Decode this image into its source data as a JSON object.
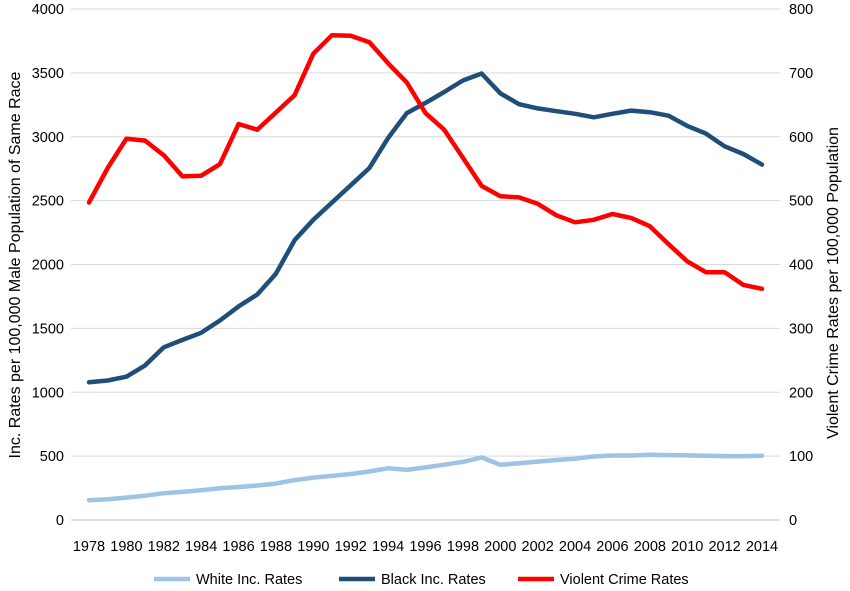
{
  "chart_data": {
    "type": "line",
    "title": "",
    "x": [
      1978,
      1979,
      1980,
      1981,
      1982,
      1983,
      1984,
      1985,
      1986,
      1987,
      1988,
      1989,
      1990,
      1991,
      1992,
      1993,
      1994,
      1995,
      1996,
      1997,
      1998,
      1999,
      2000,
      2001,
      2002,
      2003,
      2004,
      2005,
      2006,
      2007,
      2008,
      2009,
      2010,
      2011,
      2012,
      2013,
      2014
    ],
    "x_tick_labels": [
      "1978",
      "1980",
      "1982",
      "1984",
      "1986",
      "1988",
      "1990",
      "1992",
      "1994",
      "1996",
      "1998",
      "2000",
      "2002",
      "2004",
      "2006",
      "2008",
      "2010",
      "2012",
      "2014"
    ],
    "ylabel_left": "Inc. Rates per 100,000 Male Population of Same Race",
    "ylabel_right": "Violent Crime Rates per 100,000  Population",
    "ylim_left": [
      0,
      4000
    ],
    "ylim_right": [
      0,
      800
    ],
    "left_ticks": [
      "0",
      "500",
      "1000",
      "1500",
      "2000",
      "2500",
      "3000",
      "3500",
      "4000"
    ],
    "right_ticks": [
      "0",
      "100",
      "200",
      "300",
      "400",
      "500",
      "600",
      "700",
      "800"
    ],
    "grid": true,
    "legend_position": "bottom",
    "series": [
      {
        "name": "White Inc. Rates",
        "axis": "left",
        "color": "#9dc3e6",
        "values": [
          155,
          162,
          175,
          190,
          210,
          220,
          233,
          248,
          258,
          270,
          285,
          312,
          332,
          345,
          360,
          380,
          405,
          392,
          412,
          433,
          455,
          490,
          432,
          445,
          457,
          470,
          480,
          497,
          505,
          505,
          510,
          508,
          506,
          503,
          500,
          500,
          503
        ]
      },
      {
        "name": "Black Inc. Rates",
        "axis": "left",
        "color": "#1f4e79",
        "values": [
          1078,
          1092,
          1122,
          1210,
          1352,
          1410,
          1465,
          1562,
          1672,
          1765,
          1928,
          2190,
          2350,
          2485,
          2620,
          2755,
          2990,
          3185,
          3265,
          3350,
          3440,
          3495,
          3340,
          3255,
          3222,
          3200,
          3180,
          3152,
          3180,
          3205,
          3192,
          3165,
          3085,
          3025,
          2925,
          2865,
          2782
        ]
      },
      {
        "name": "Violent Crime Rates",
        "axis": "right",
        "color": "#ff0000",
        "values": [
          497,
          551,
          597,
          594,
          571,
          538,
          539,
          557,
          620,
          611,
          638,
          665,
          730,
          759,
          758,
          748,
          715,
          685,
          637,
          611,
          567,
          523,
          507,
          505,
          495,
          477,
          466,
          470,
          479,
          473,
          460,
          432,
          405,
          388,
          388,
          368,
          362
        ]
      }
    ]
  }
}
